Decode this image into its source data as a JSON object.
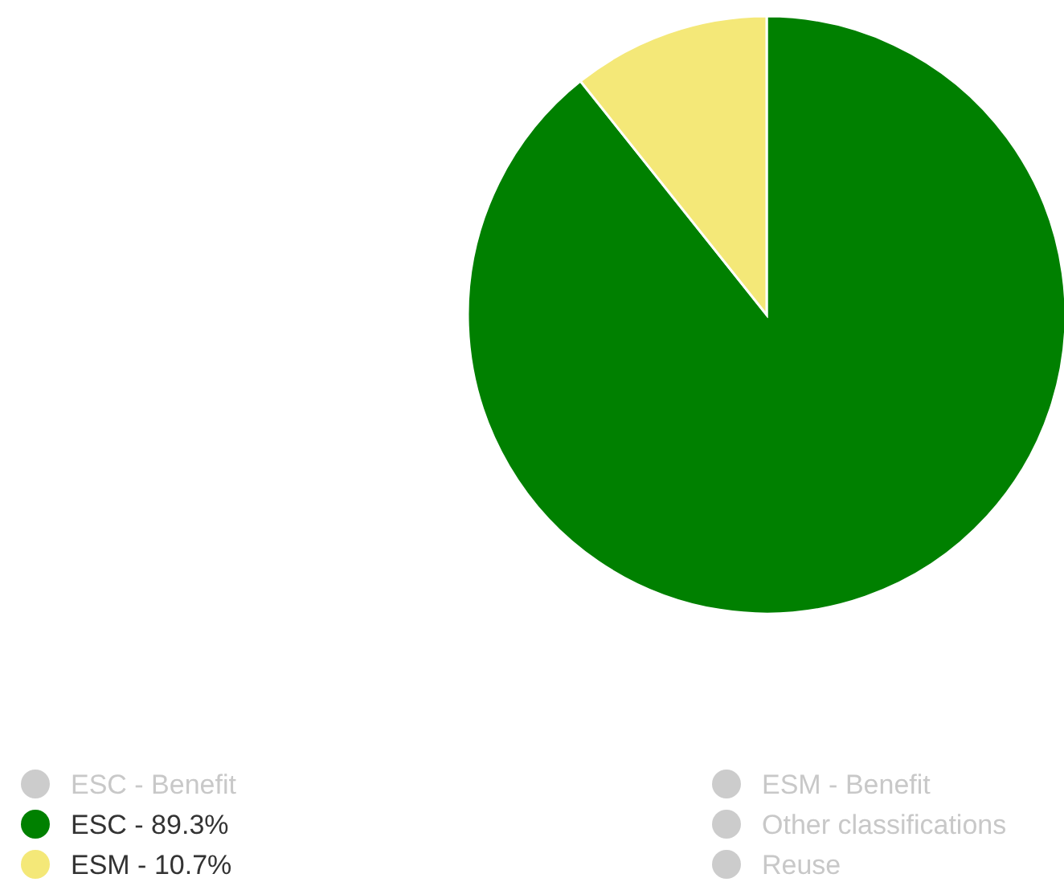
{
  "chart_data": {
    "type": "pie",
    "categories": [
      "ESC - Benefit",
      "ESC - 89.3%",
      "ESM - 10.7%",
      "ESM - Benefit",
      "Other classifications",
      "Reuse"
    ],
    "values": [
      null,
      89.3,
      10.7,
      null,
      null,
      null
    ],
    "colors": [
      "#cccccc",
      "#008000",
      "#f4e878",
      "#cccccc",
      "#cccccc",
      "#cccccc"
    ],
    "legend": "bottom"
  }
}
